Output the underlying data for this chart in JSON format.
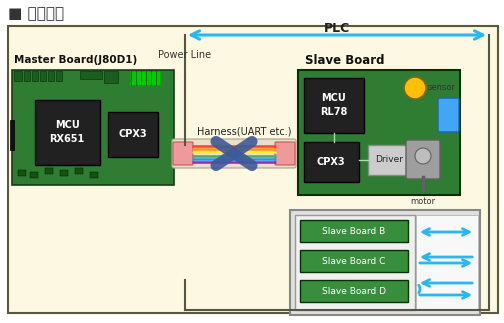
{
  "title": "■ 系统架构",
  "bg_color": "#fdf8e1",
  "border_color": "#5a5a3a",
  "plc_label": "PLC",
  "power_line_label": "Power Line",
  "harness_label": "Harness(UART etc.)",
  "master_label": "Master Board(J80D1)",
  "slave_label": "Slave Board",
  "mcu_rx_label": "MCU\nRX651",
  "cpx3_m_label": "CPX3",
  "mcu_rl78_label": "MCU\nRL78",
  "cpx3_s_label": "CPX3",
  "driver_label": "Driver",
  "sensor_label": "sensor",
  "motor_label": "motor",
  "slave_b_label": "Slave Board B",
  "slave_c_label": "Slave Board C",
  "slave_d_label": "Slave Board D",
  "pcb_green": "#2e7d32",
  "pcb_dark": "#1b5e20",
  "chip_dark": "#212121",
  "chip_text": "#eeeeee",
  "slave_box_green": "#2e7d32",
  "slave_item_green": "#388e3c",
  "arrow_cyan": "#29b6f6",
  "connector_pink": "#ef9a9a",
  "connector_red": "#e57373",
  "cable_colors": [
    "#f44336",
    "#ff9800",
    "#ffeb3b",
    "#4caf50",
    "#2196f3",
    "#9c27b0"
  ],
  "cross_color": "#3d5a99",
  "harness_bg": "#e8e0c8",
  "driver_bg": "#cccccc",
  "driver_edge": "#888888",
  "sensor_yellow": "#ffc107",
  "motor_gray": "#9e9e9e",
  "motor_dark": "#616161",
  "sensor_blue": "#42a5f5",
  "lower_bg": "#e0e0e0",
  "lower_edge": "#888888"
}
